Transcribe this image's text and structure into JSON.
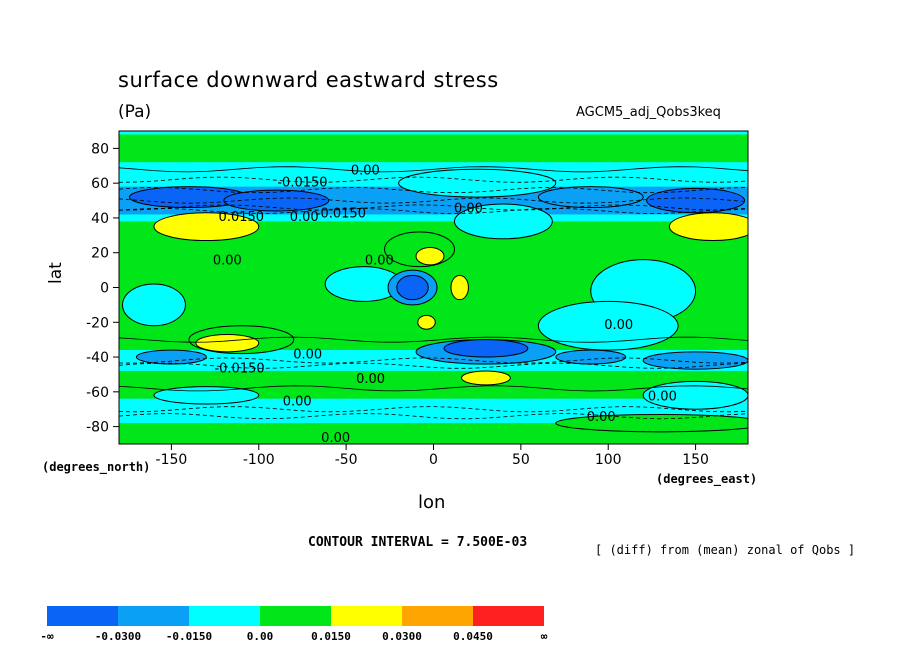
{
  "chart_data": {
    "type": "heatmap",
    "title": "surface downward eastward stress",
    "units": "(Pa)",
    "dataset": "AGCM5_adj_Qobs3keq",
    "xlabel": "lon",
    "ylabel": "lat",
    "x_note": "(degrees_east)",
    "y_note": "(degrees_north)",
    "xlim": [
      -180,
      180
    ],
    "ylim": [
      -90,
      90
    ],
    "x_ticks": [
      -150,
      -100,
      -50,
      0,
      50,
      100,
      150
    ],
    "y_ticks": [
      80,
      60,
      40,
      20,
      0,
      -20,
      -40,
      -60,
      -80
    ],
    "contour_interval_text": "CONTOUR INTERVAL = 7.500E-03",
    "note": "[ (diff) from (mean) zonal of Qobs ]",
    "contour_labels": [
      {
        "text": "0.00",
        "lon": -39,
        "lat": 68
      },
      {
        "text": "-0.0150",
        "lon": -75,
        "lat": 61
      },
      {
        "text": "-0.0150",
        "lon": -53,
        "lat": 43
      },
      {
        "text": "0.0150",
        "lon": -110,
        "lat": 41
      },
      {
        "text": "0.00",
        "lon": -74,
        "lat": 41
      },
      {
        "text": "0.00",
        "lon": 20,
        "lat": 46
      },
      {
        "text": "0.00",
        "lon": -118,
        "lat": 16
      },
      {
        "text": "0.00",
        "lon": -31,
        "lat": 16
      },
      {
        "text": "0.00",
        "lon": 106,
        "lat": -21
      },
      {
        "text": "0.00",
        "lon": -72,
        "lat": -38
      },
      {
        "text": "-0.0150",
        "lon": -111,
        "lat": -46
      },
      {
        "text": "0.00",
        "lon": -36,
        "lat": -52
      },
      {
        "text": "0.00",
        "lon": 131,
        "lat": -62
      },
      {
        "text": "0.00",
        "lon": -78,
        "lat": -65
      },
      {
        "text": "0.00",
        "lon": 96,
        "lat": -74
      },
      {
        "text": "0.00",
        "lon": -56,
        "lat": -86
      }
    ],
    "colorbar": {
      "bins": [
        "#0a64f5",
        "#0aa0f5",
        "#00ffff",
        "#00e619",
        "#ffff00",
        "#ffa500",
        "#ff2020"
      ],
      "labels": [
        "-∞",
        "-0.0300",
        "-0.0150",
        "0.00",
        "0.0150",
        "0.0300",
        "0.0450",
        "∞"
      ]
    }
  }
}
